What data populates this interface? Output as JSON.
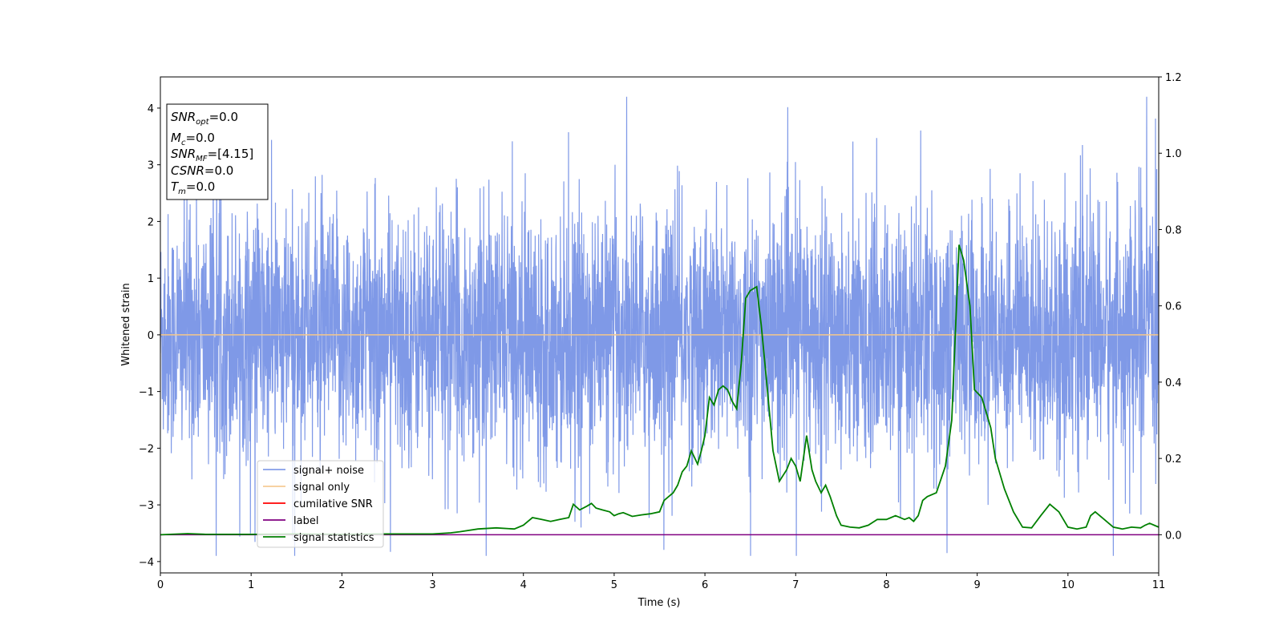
{
  "chart_data": {
    "type": "line",
    "xlabel": "Time (s)",
    "ylabel": "Whitened strain",
    "xlim": [
      0,
      11
    ],
    "ylim": [
      -4.2,
      4.55
    ],
    "y2lim": [
      -0.1,
      1.2
    ],
    "x_ticks": [
      "0",
      "1",
      "2",
      "3",
      "4",
      "5",
      "6",
      "7",
      "8",
      "9",
      "10",
      "11"
    ],
    "y_ticks": [
      "−4",
      "−3",
      "−2",
      "−1",
      "0",
      "1",
      "2",
      "3",
      "4"
    ],
    "y2_ticks": [
      "0.0",
      "0.2",
      "0.4",
      "0.6",
      "0.8",
      "1.0",
      "1.2"
    ],
    "legend_position": "lower-left",
    "info_box": [
      {
        "sym": "SNR",
        "sub": "opt",
        "val": "=0.0"
      },
      {
        "sym": "M",
        "sub": "c",
        "val": "=0.0"
      },
      {
        "sym": "SNR",
        "sub": "MF",
        "val": "=[4.15]"
      },
      {
        "sym": "CSNR",
        "sub": "",
        "val": "=0.0"
      },
      {
        "sym": "T",
        "sub": "m",
        "val": "=0.0"
      }
    ],
    "series": [
      {
        "name": "signal+ noise",
        "color": "#7893e6",
        "description": "whitened strain noise, values mostly within ±1.5 with spikes to ±4"
      },
      {
        "name": "signal only",
        "color": "#f5c78a",
        "values_constant": 0.0
      },
      {
        "name": "cumilative SNR",
        "color": "#ff0000",
        "values_constant": 0.0
      },
      {
        "name": "label",
        "color": "#800080",
        "axis": "right",
        "values_constant": 0.0
      },
      {
        "name": "signal statistics",
        "color": "#008000",
        "axis": "right",
        "x": [
          0,
          0.3,
          0.5,
          1.0,
          1.5,
          2.0,
          2.5,
          3.0,
          3.2,
          3.3,
          3.5,
          3.7,
          3.9,
          4.0,
          4.05,
          4.1,
          4.2,
          4.3,
          4.4,
          4.5,
          4.55,
          4.62,
          4.7,
          4.75,
          4.8,
          4.87,
          4.95,
          5.0,
          5.05,
          5.1,
          5.2,
          5.3,
          5.4,
          5.5,
          5.55,
          5.6,
          5.65,
          5.7,
          5.75,
          5.8,
          5.85,
          5.88,
          5.92,
          5.96,
          6.0,
          6.05,
          6.1,
          6.15,
          6.2,
          6.25,
          6.3,
          6.35,
          6.4,
          6.45,
          6.5,
          6.57,
          6.62,
          6.68,
          6.75,
          6.82,
          6.9,
          6.95,
          7.0,
          7.05,
          7.12,
          7.18,
          7.22,
          7.28,
          7.33,
          7.38,
          7.45,
          7.5,
          7.6,
          7.7,
          7.8,
          7.9,
          8.0,
          8.05,
          8.1,
          8.2,
          8.25,
          8.3,
          8.35,
          8.4,
          8.45,
          8.55,
          8.65,
          8.72,
          8.8,
          8.85,
          8.92,
          8.97,
          9.05,
          9.1,
          9.15,
          9.2,
          9.3,
          9.4,
          9.5,
          9.6,
          9.7,
          9.8,
          9.9,
          10.0,
          10.1,
          10.2,
          10.25,
          10.3,
          10.4,
          10.5,
          10.6,
          10.7,
          10.8,
          10.85,
          10.9,
          10.95,
          11.0
        ],
        "values": [
          0,
          0.003,
          0.001,
          0.001,
          0.002,
          0.001,
          0.002,
          0.002,
          0.005,
          0.008,
          0.015,
          0.018,
          0.015,
          0.025,
          0.035,
          0.045,
          0.04,
          0.035,
          0.04,
          0.045,
          0.08,
          0.065,
          0.075,
          0.082,
          0.07,
          0.065,
          0.06,
          0.05,
          0.055,
          0.058,
          0.048,
          0.052,
          0.055,
          0.06,
          0.09,
          0.1,
          0.11,
          0.13,
          0.165,
          0.18,
          0.22,
          0.205,
          0.185,
          0.22,
          0.26,
          0.36,
          0.34,
          0.38,
          0.39,
          0.38,
          0.35,
          0.33,
          0.45,
          0.62,
          0.64,
          0.65,
          0.55,
          0.4,
          0.22,
          0.14,
          0.17,
          0.2,
          0.18,
          0.14,
          0.26,
          0.17,
          0.14,
          0.11,
          0.13,
          0.1,
          0.05,
          0.025,
          0.02,
          0.018,
          0.025,
          0.04,
          0.04,
          0.045,
          0.05,
          0.04,
          0.045,
          0.035,
          0.05,
          0.09,
          0.1,
          0.11,
          0.18,
          0.3,
          0.76,
          0.72,
          0.6,
          0.38,
          0.36,
          0.32,
          0.28,
          0.2,
          0.12,
          0.06,
          0.02,
          0.018,
          0.05,
          0.08,
          0.06,
          0.02,
          0.015,
          0.02,
          0.05,
          0.06,
          0.04,
          0.02,
          0.015,
          0.02,
          0.018,
          0.025,
          0.03,
          0.025,
          0.02
        ]
      }
    ]
  }
}
